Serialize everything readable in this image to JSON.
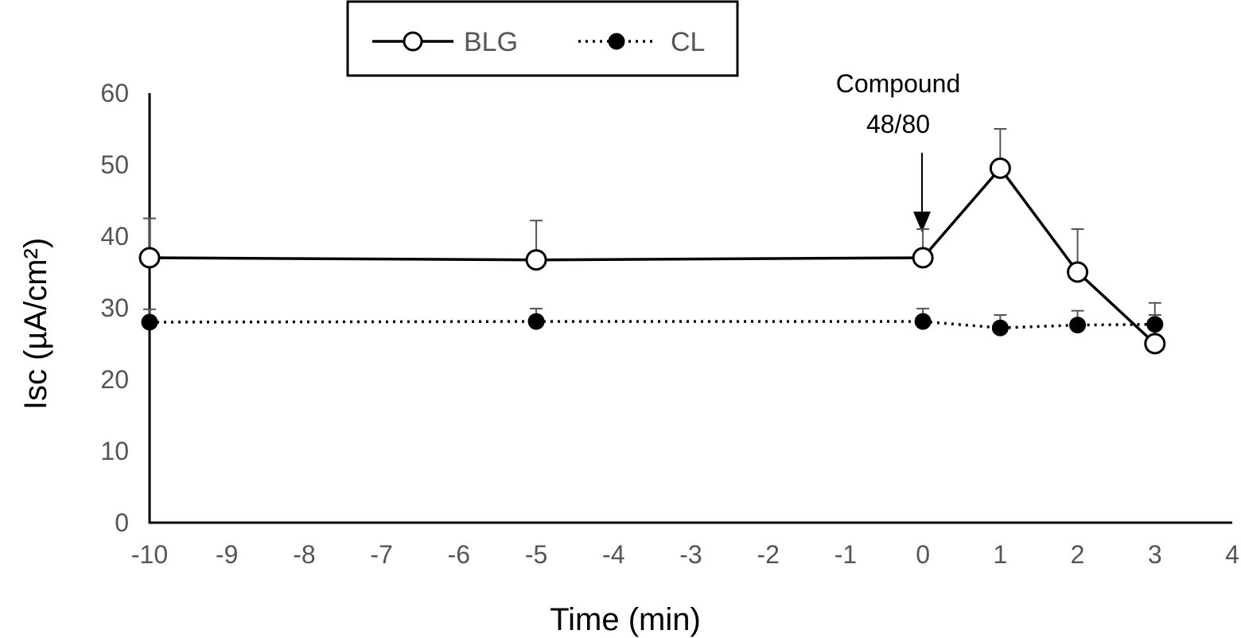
{
  "chart_data": {
    "type": "line",
    "title": "",
    "xlabel": "Time (min)",
    "ylabel": "Isc (µA/cm²)",
    "xlim": [
      -10,
      4
    ],
    "ylim": [
      0,
      60
    ],
    "x_ticks": [
      "-10",
      "-9",
      "-8",
      "-7",
      "-6",
      "-5",
      "-4",
      "-3",
      "-2",
      "-1",
      "0",
      "1",
      "2",
      "3",
      "4"
    ],
    "y_ticks": [
      "0",
      "10",
      "20",
      "30",
      "40",
      "50",
      "60"
    ],
    "grid": false,
    "legend_position": "top-center",
    "series": [
      {
        "name": "BLG",
        "style": "solid line, open circle markers",
        "color": "#000000",
        "x": [
          -10,
          -5,
          0,
          1,
          2,
          3
        ],
        "y": [
          37,
          36.7,
          37,
          49.5,
          35,
          25
        ],
        "error_upper": [
          5.5,
          5.5,
          4,
          5.5,
          6,
          4
        ]
      },
      {
        "name": "CL",
        "style": "dotted line, filled circle markers",
        "color": "#000000",
        "x": [
          -10,
          -5,
          0,
          1,
          2,
          3
        ],
        "y": [
          28,
          28.1,
          28.1,
          27.2,
          27.6,
          27.7
        ],
        "error_upper": [
          1.8,
          1.8,
          1.8,
          1.8,
          2,
          3
        ]
      }
    ],
    "annotations": [
      {
        "text_line1": "Compound",
        "text_line2": "48/80",
        "x": 0,
        "marker": "down-arrow"
      }
    ]
  }
}
